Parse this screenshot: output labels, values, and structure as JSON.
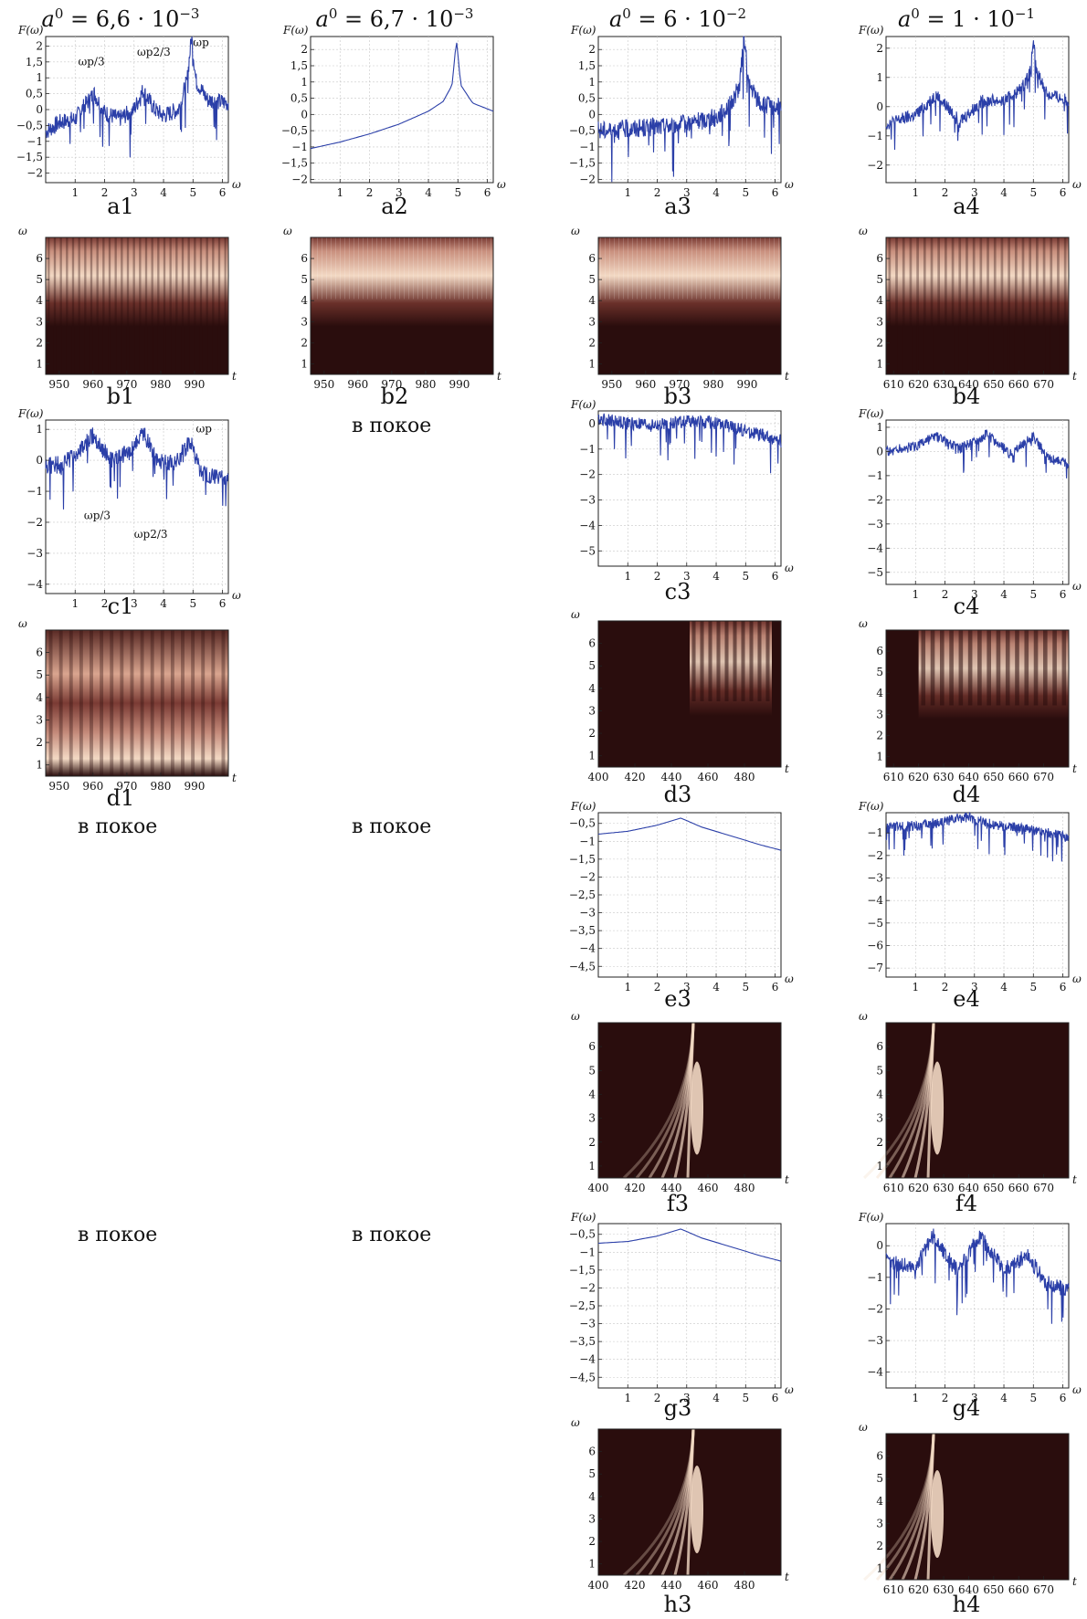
{
  "headers": [
    {
      "label": "a",
      "sup": "0",
      "rest": " = 6,6 · 10",
      "exp": "−3"
    },
    {
      "label": "a",
      "sup": "0",
      "rest": " = 6,7 · 10",
      "exp": "−3"
    },
    {
      "label": "a",
      "sup": "0",
      "rest": " = 6 · 10",
      "exp": "−2"
    },
    {
      "label": "a",
      "sup": "0",
      "rest": " = 1 · 10",
      "exp": "−1"
    }
  ],
  "rest_text": "в покое",
  "colors": {
    "line": "#2b3fa8",
    "heat_dark": "#2a0d0d",
    "heat_light": "#f3d9c4",
    "grid": "#c8c8c8"
  },
  "chart_data": [
    {
      "id": "a1",
      "type": "line",
      "ylabel": "F(ω)",
      "xlabel": "ω",
      "x_ticks": [
        "1",
        "2",
        "3",
        "4",
        "5",
        "6"
      ],
      "y_ticks": [
        "2",
        "1,5",
        "1",
        "0,5",
        "0",
        "−0,5",
        "−1",
        "−1,5",
        "−2"
      ],
      "xlim": [
        0,
        6.2
      ],
      "ylim": [
        -2.3,
        2.3
      ],
      "annotations": [
        "ωp/3",
        "ωp2/3",
        "ωp"
      ],
      "x": [
        0,
        0.5,
        1,
        1.3,
        1.65,
        2,
        2.5,
        3,
        3.3,
        3.7,
        4,
        4.5,
        4.8,
        4.95,
        5.1,
        5.5,
        6.2
      ],
      "y": [
        -0.7,
        -0.4,
        -0.3,
        0.1,
        0.5,
        -0.1,
        -0.3,
        0,
        0.6,
        0,
        -0.2,
        0,
        0.9,
        2.3,
        0.9,
        0.3,
        0.2
      ],
      "noise": 0.55
    },
    {
      "id": "a2",
      "type": "line",
      "ylabel": "F(ω)",
      "xlabel": "ω",
      "x_ticks": [
        "1",
        "2",
        "3",
        "4",
        "5",
        "6"
      ],
      "y_ticks": [
        "2",
        "1,5",
        "1",
        "0,5",
        "0",
        "−0,5",
        "−1",
        "−1,5",
        "−2"
      ],
      "xlim": [
        0,
        6.2
      ],
      "ylim": [
        -2.1,
        2.4
      ],
      "x": [
        0,
        1,
        2,
        3,
        4,
        4.5,
        4.8,
        4.95,
        5.1,
        5.5,
        6.2
      ],
      "y": [
        -1.05,
        -0.85,
        -0.6,
        -0.3,
        0.1,
        0.4,
        0.9,
        2.3,
        0.9,
        0.35,
        0.1
      ],
      "noise": 0
    },
    {
      "id": "a3",
      "type": "line",
      "ylabel": "F(ω)",
      "xlabel": "ω",
      "x_ticks": [
        "1",
        "2",
        "3",
        "4",
        "5",
        "6"
      ],
      "y_ticks": [
        "2",
        "1,5",
        "1",
        "0,5",
        "0",
        "−0,5",
        "−1",
        "−1,5",
        "−2"
      ],
      "xlim": [
        0,
        6.2
      ],
      "ylim": [
        -2.1,
        2.4
      ],
      "x": [
        0,
        1,
        2,
        3,
        4,
        4.5,
        4.8,
        4.95,
        5.1,
        5.5,
        6.2
      ],
      "y": [
        -0.5,
        -0.45,
        -0.4,
        -0.3,
        -0.1,
        0.3,
        0.9,
        2.4,
        0.9,
        0.3,
        0.2
      ],
      "noise": 0.6
    },
    {
      "id": "a4",
      "type": "line",
      "ylabel": "F(ω)",
      "xlabel": "ω",
      "x_ticks": [
        "1",
        "2",
        "3",
        "4",
        "5",
        "6"
      ],
      "y_ticks": [
        "2",
        "1",
        "0",
        "−1",
        "−2"
      ],
      "xlim": [
        0,
        6.2
      ],
      "ylim": [
        -2.6,
        2.4
      ],
      "x": [
        0,
        1,
        1.7,
        2.5,
        3.3,
        4,
        4.6,
        4.9,
        5,
        5.1,
        5.5,
        6.2
      ],
      "y": [
        -0.6,
        -0.3,
        0.4,
        -0.5,
        0.2,
        0.2,
        0.6,
        1.2,
        2.3,
        1.2,
        0.4,
        0.2
      ],
      "noise": 0.45
    },
    {
      "id": "b1",
      "type": "heatmap",
      "ylabel": "ω",
      "xlabel": "t",
      "x_ticks": [
        "950",
        "960",
        "970",
        "980",
        "990"
      ],
      "y_ticks": [
        "6",
        "5",
        "4",
        "3",
        "2",
        "1"
      ],
      "xlim": [
        946,
        1000
      ],
      "ylim": [
        0.5,
        7
      ],
      "bright": [
        5.6,
        5.0
      ],
      "stripes": 30,
      "vcol": true
    },
    {
      "id": "b2",
      "type": "heatmap",
      "ylabel": "ω",
      "xlabel": "t",
      "x_ticks": [
        "950",
        "960",
        "970",
        "980",
        "990"
      ],
      "y_ticks": [
        "6",
        "5",
        "4",
        "3",
        "2",
        "1"
      ],
      "xlim": [
        946,
        1000
      ],
      "ylim": [
        0.5,
        7
      ],
      "bright": [
        5.6,
        5.0
      ],
      "stripes": 0,
      "vcol": true
    },
    {
      "id": "b3",
      "type": "heatmap",
      "ylabel": "ω",
      "xlabel": "t",
      "x_ticks": [
        "950",
        "960",
        "970",
        "980",
        "990"
      ],
      "y_ticks": [
        "6",
        "5",
        "4",
        "3",
        "2",
        "1"
      ],
      "xlim": [
        946,
        1000
      ],
      "ylim": [
        0.5,
        7
      ],
      "bright": [
        5.6,
        5.0
      ],
      "stripes": 0,
      "vcol": true
    },
    {
      "id": "b4",
      "type": "heatmap",
      "ylabel": "ω",
      "xlabel": "t",
      "x_ticks": [
        "610",
        "620",
        "630",
        "640",
        "650",
        "660",
        "670"
      ],
      "y_ticks": [
        "6",
        "5",
        "4",
        "3",
        "2",
        "1"
      ],
      "xlim": [
        607,
        680
      ],
      "ylim": [
        0.5,
        7
      ],
      "bright": [
        5.6,
        5.0
      ],
      "stripes": 26,
      "vcol": true
    },
    {
      "id": "c1",
      "type": "line",
      "ylabel": "F(ω)",
      "xlabel": "ω",
      "x_ticks": [
        "1",
        "2",
        "3",
        "4",
        "5",
        "6"
      ],
      "y_ticks": [
        "1",
        "0",
        "−1",
        "−2",
        "−3",
        "−4"
      ],
      "xlim": [
        0,
        6.2
      ],
      "ylim": [
        -4.3,
        1.3
      ],
      "annotations": [
        "ωp/3",
        "ωp2/3",
        "ωp"
      ],
      "x": [
        0,
        0.6,
        1.2,
        1.6,
        2.2,
        2.8,
        3.3,
        3.8,
        4.4,
        4.9,
        5.3,
        6.2
      ],
      "y": [
        -0.2,
        -0.1,
        0.3,
        0.8,
        0,
        0.2,
        0.9,
        0,
        -0.1,
        0.6,
        -0.5,
        -0.6
      ],
      "noise": 0.6
    },
    {
      "id": "c3",
      "type": "line",
      "ylabel": "F(ω)",
      "xlabel": "ω",
      "x_ticks": [
        "1",
        "2",
        "3",
        "4",
        "5",
        "6"
      ],
      "y_ticks": [
        "0",
        "−1",
        "−2",
        "−3",
        "−4",
        "−5"
      ],
      "xlim": [
        0,
        6.2
      ],
      "ylim": [
        -5.6,
        0.5
      ],
      "x": [
        0,
        1,
        2,
        3,
        4,
        5,
        6.2
      ],
      "y": [
        0.2,
        0,
        -0.1,
        0.1,
        0,
        -0.3,
        -0.7
      ],
      "noise": 0.55
    },
    {
      "id": "c4",
      "type": "line",
      "ylabel": "F(ω)",
      "xlabel": "ω",
      "x_ticks": [
        "1",
        "2",
        "3",
        "4",
        "5",
        "6"
      ],
      "y_ticks": [
        "1",
        "0",
        "−1",
        "−2",
        "−3",
        "−4",
        "−5"
      ],
      "xlim": [
        0,
        6.2
      ],
      "ylim": [
        -5.5,
        1.3
      ],
      "x": [
        0,
        1,
        1.7,
        2.5,
        3.4,
        4.2,
        5,
        5.5,
        6.2
      ],
      "y": [
        0,
        0.2,
        0.6,
        0.1,
        0.7,
        -0.1,
        0.6,
        -0.3,
        -0.5
      ],
      "noise": 0.45
    },
    {
      "id": "d1",
      "type": "heatmap",
      "ylabel": "ω",
      "xlabel": "t",
      "x_ticks": [
        "950",
        "960",
        "970",
        "980",
        "990"
      ],
      "y_ticks": [
        "6",
        "5",
        "4",
        "3",
        "2",
        "1"
      ],
      "xlim": [
        946,
        1000
      ],
      "ylim": [
        0.5,
        7
      ],
      "bright": [
        1.5,
        4.2
      ],
      "stripes": 18,
      "vcol": true
    },
    {
      "id": "d3",
      "type": "heatmap",
      "ylabel": "ω",
      "xlabel": "t",
      "x_ticks": [
        "400",
        "420",
        "440",
        "460",
        "480"
      ],
      "y_ticks": [
        "6",
        "5",
        "4",
        "3",
        "2",
        "1"
      ],
      "xlim": [
        400,
        500
      ],
      "ylim": [
        0.5,
        7
      ],
      "burst": [
        450,
        495
      ],
      "stripes": 10
    },
    {
      "id": "d4",
      "type": "heatmap",
      "ylabel": "ω",
      "xlabel": "t",
      "x_ticks": [
        "610",
        "620",
        "630",
        "640",
        "650",
        "660",
        "670"
      ],
      "y_ticks": [
        "6",
        "5",
        "4",
        "3",
        "2",
        "1"
      ],
      "xlim": [
        607,
        680
      ],
      "ylim": [
        0.5,
        7
      ],
      "burst": [
        620,
        680
      ],
      "stripes": 16
    },
    {
      "id": "e3",
      "type": "line",
      "ylabel": "F(ω)",
      "xlabel": "ω",
      "x_ticks": [
        "1",
        "2",
        "3",
        "4",
        "5",
        "6"
      ],
      "y_ticks": [
        "−0,5",
        "−1",
        "−1,5",
        "−2",
        "−2,5",
        "−3",
        "−3,5",
        "−4",
        "−4,5"
      ],
      "xlim": [
        0,
        6.2
      ],
      "ylim": [
        -4.8,
        -0.2
      ],
      "x": [
        0,
        1,
        2,
        2.8,
        3.5,
        4.5,
        5.5,
        6.2
      ],
      "y": [
        -0.8,
        -0.72,
        -0.55,
        -0.35,
        -0.6,
        -0.85,
        -1.1,
        -1.25
      ],
      "noise": 0
    },
    {
      "id": "e4",
      "type": "line",
      "ylabel": "F(ω)",
      "xlabel": "ω",
      "x_ticks": [
        "1",
        "2",
        "3",
        "4",
        "5",
        "6"
      ],
      "y_ticks": [
        "−1",
        "−2",
        "−3",
        "−4",
        "−5",
        "−6",
        "−7"
      ],
      "xlim": [
        0,
        6.2
      ],
      "ylim": [
        -7.4,
        -0.1
      ],
      "x": [
        0,
        1,
        2,
        2.7,
        3.5,
        4.5,
        5.5,
        6.2
      ],
      "y": [
        -0.8,
        -0.7,
        -0.5,
        -0.3,
        -0.6,
        -0.8,
        -1,
        -1.2
      ],
      "noise": 0.5
    },
    {
      "id": "f3",
      "type": "heatmap",
      "ylabel": "ω",
      "xlabel": "t",
      "x_ticks": [
        "400",
        "420",
        "440",
        "460",
        "480"
      ],
      "y_ticks": [
        "6",
        "5",
        "4",
        "3",
        "2",
        "1"
      ],
      "xlim": [
        400,
        500
      ],
      "ylim": [
        0.5,
        7
      ],
      "spike": 452,
      "stripes": 0
    },
    {
      "id": "f4",
      "type": "heatmap",
      "ylabel": "ω",
      "xlabel": "t",
      "x_ticks": [
        "610",
        "620",
        "630",
        "640",
        "650",
        "660",
        "670"
      ],
      "y_ticks": [
        "6",
        "5",
        "4",
        "3",
        "2",
        "1"
      ],
      "xlim": [
        607,
        680
      ],
      "ylim": [
        0.5,
        7
      ],
      "spike": 626,
      "stripes": 0
    },
    {
      "id": "g3",
      "type": "line",
      "ylabel": "F(ω)",
      "xlabel": "ω",
      "x_ticks": [
        "1",
        "2",
        "3",
        "4",
        "5",
        "6"
      ],
      "y_ticks": [
        "−0,5",
        "−1",
        "−1,5",
        "−2",
        "−2,5",
        "−3",
        "−3,5",
        "−4",
        "−4,5"
      ],
      "xlim": [
        0,
        6.2
      ],
      "ylim": [
        -4.8,
        -0.2
      ],
      "x": [
        0,
        1,
        2,
        2.8,
        3.5,
        4.5,
        5.5,
        6.2
      ],
      "y": [
        -0.75,
        -0.7,
        -0.55,
        -0.35,
        -0.6,
        -0.85,
        -1.1,
        -1.25
      ],
      "noise": 0
    },
    {
      "id": "g4",
      "type": "line",
      "ylabel": "F(ω)",
      "xlabel": "ω",
      "x_ticks": [
        "1",
        "2",
        "3",
        "4",
        "5",
        "6"
      ],
      "y_ticks": [
        "0",
        "−1",
        "−2",
        "−3",
        "−4"
      ],
      "xlim": [
        0,
        6.2
      ],
      "ylim": [
        -4.5,
        0.7
      ],
      "x": [
        0,
        1,
        1.6,
        2.4,
        3.2,
        4,
        4.8,
        5.4,
        6.2
      ],
      "y": [
        -0.5,
        -0.7,
        0.3,
        -0.8,
        0.3,
        -0.8,
        -0.3,
        -1.2,
        -1.4
      ],
      "noise": 0.55
    },
    {
      "id": "h3",
      "type": "heatmap",
      "ylabel": "ω",
      "xlabel": "t",
      "x_ticks": [
        "400",
        "420",
        "440",
        "460",
        "480"
      ],
      "y_ticks": [
        "6",
        "5",
        "4",
        "3",
        "2",
        "1"
      ],
      "xlim": [
        400,
        500
      ],
      "ylim": [
        0.5,
        7
      ],
      "spike": 452,
      "stripes": 0
    },
    {
      "id": "h4",
      "type": "heatmap",
      "ylabel": "ω",
      "xlabel": "t",
      "x_ticks": [
        "610",
        "620",
        "630",
        "640",
        "650",
        "660",
        "670"
      ],
      "y_ticks": [
        "6",
        "5",
        "4",
        "3",
        "2",
        "1"
      ],
      "xlim": [
        607,
        680
      ],
      "ylim": [
        0.5,
        7
      ],
      "spike": 626,
      "stripes": 0
    }
  ]
}
